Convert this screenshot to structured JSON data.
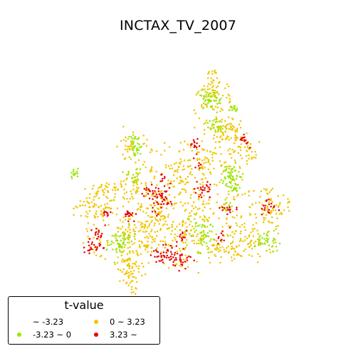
{
  "title": "INCTAX_TV_2007",
  "legend": {
    "title": "t-value",
    "items": [
      {
        "label": "~ -3.23",
        "color": ""
      },
      {
        "label": "0 ~ 3.23",
        "color": "#f2c500"
      },
      {
        "label": "-3.23 ~ 0",
        "color": "#9be60a"
      },
      {
        "label": "3.23 ~",
        "color": "#ea0000"
      }
    ]
  },
  "colors": {
    "positive_low": "#f2c500",
    "negative_low": "#9be60a",
    "positive_high": "#ea0000"
  }
}
